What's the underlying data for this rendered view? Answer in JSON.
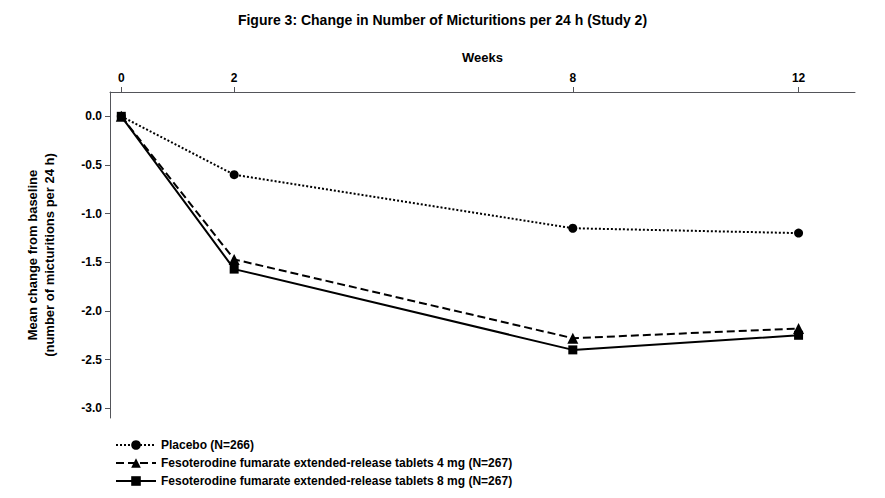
{
  "chart_data": {
    "type": "line",
    "title": "Figure 3: Change in Number of Micturitions per 24 h (Study 2)",
    "xlabel": "Weeks",
    "ylabel": "Mean change from baseline\n(number of micturitions per 24 h)",
    "x": [
      0,
      2,
      8,
      12
    ],
    "xlim": [
      -0.2,
      13.0
    ],
    "xticks": [
      0,
      2,
      8,
      12
    ],
    "ylim": [
      -3.1,
      0.25
    ],
    "yticks": [
      {
        "value": 0.0,
        "label": "0.0"
      },
      -0.5,
      {
        "value": -1.0,
        "label": "-1.0"
      },
      -1.5,
      {
        "value": -2.0,
        "label": "-2.0"
      },
      -2.5,
      {
        "value": -3.0,
        "label": "-3.0"
      }
    ],
    "grid": false,
    "legend": "lower left",
    "series": [
      {
        "name": "Placebo (N=266)",
        "color": "#000000",
        "marker": "circle",
        "line_style": "dotted",
        "values": [
          0.0,
          -0.6,
          -1.15,
          -1.2
        ]
      },
      {
        "name": "Fesoterodine fumarate extended-release tablets 4 mg (N=267)",
        "color": "#000000",
        "marker": "triangle",
        "line_style": "dashed",
        "values": [
          0.0,
          -1.47,
          -2.28,
          -2.18
        ]
      },
      {
        "name": "Fesoterodine fumarate extended-release tablets 8 mg (N=267)",
        "color": "#000000",
        "marker": "square",
        "line_style": "solid",
        "values": [
          0.0,
          -1.57,
          -2.4,
          -2.25
        ]
      }
    ]
  }
}
